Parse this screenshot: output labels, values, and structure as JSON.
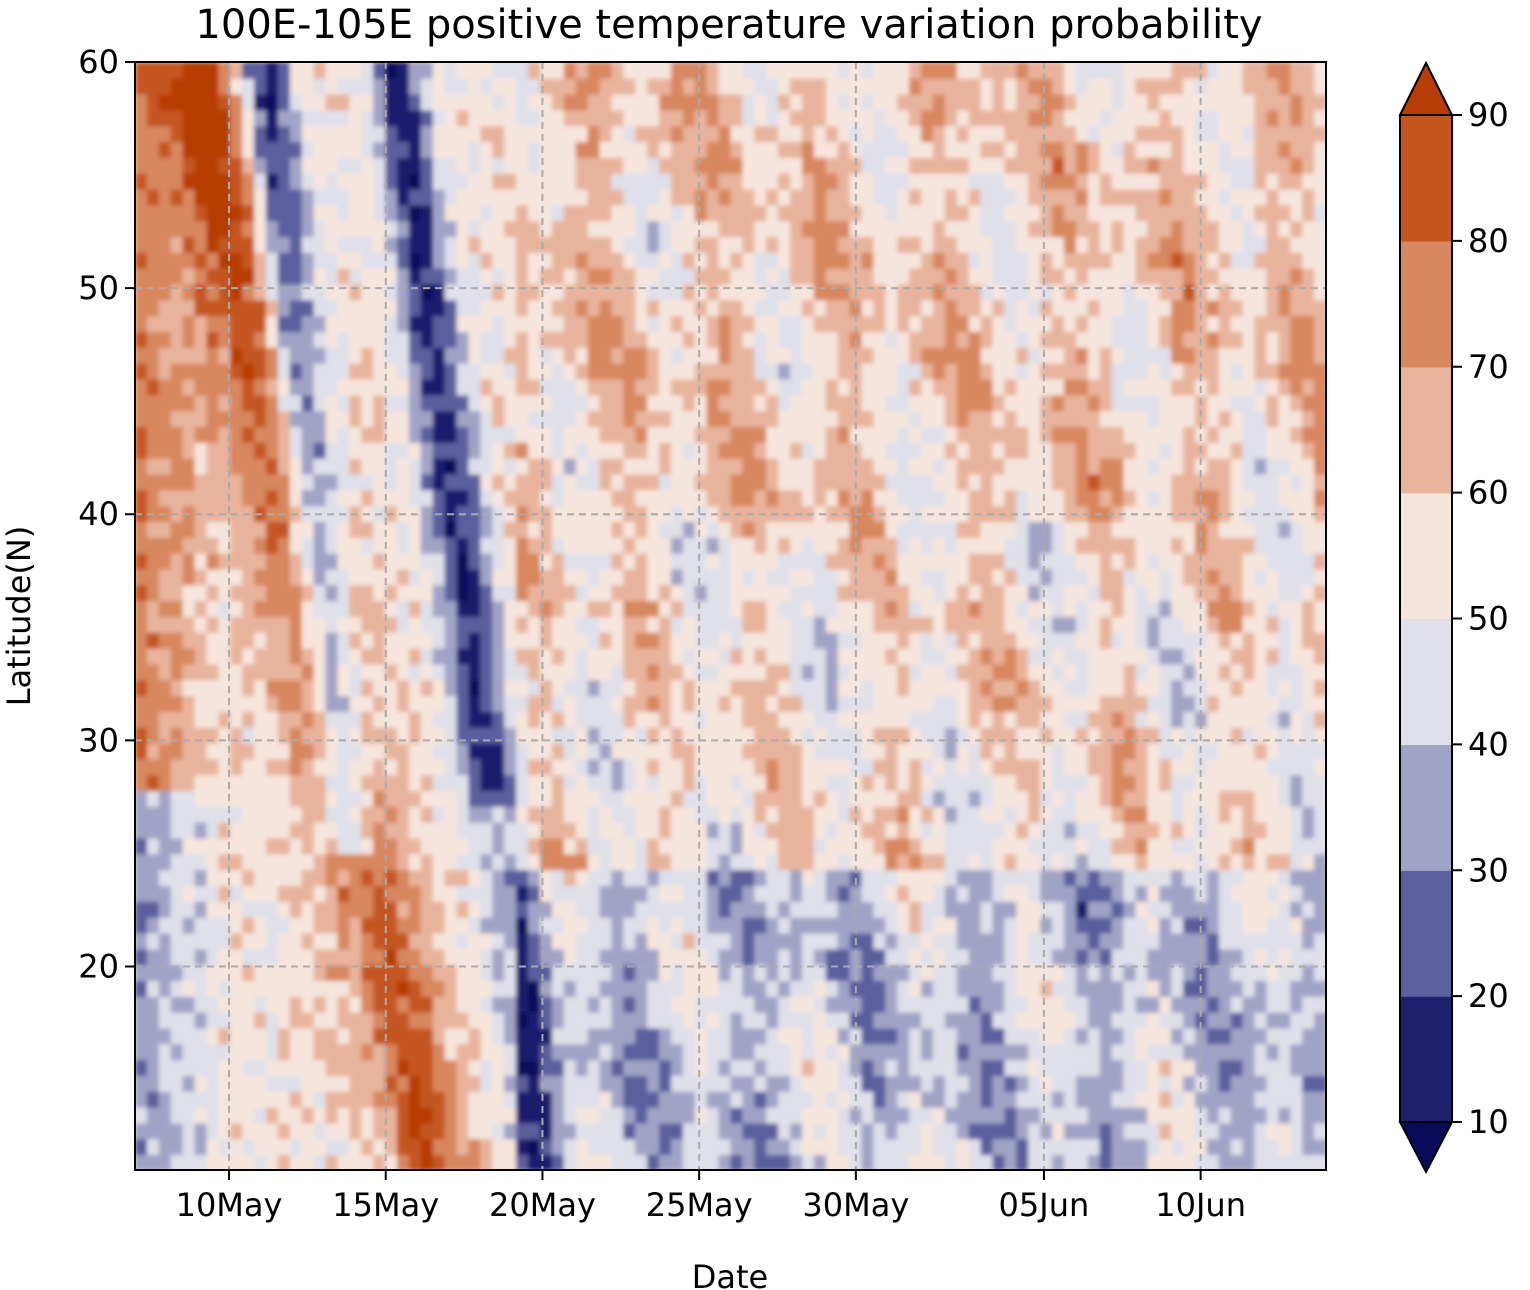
{
  "chart_data": {
    "type": "heatmap",
    "title": "100E-105E positive temperature variation probability",
    "xlabel": "Date",
    "ylabel": "Latitude(N)",
    "x_ticks": [
      "10May",
      "15May",
      "20May",
      "25May",
      "30May",
      "05Jun",
      "10Jun"
    ],
    "y_ticks": [
      "20",
      "30",
      "40",
      "50",
      "60"
    ],
    "ylim": [
      11,
      60
    ],
    "x_tick_positions_days_from_start": [
      3,
      8,
      13,
      18,
      23,
      29,
      34
    ],
    "x_range_days": [
      0,
      38
    ],
    "grid": true,
    "colorbar": {
      "levels": [
        10,
        20,
        30,
        40,
        50,
        60,
        70,
        80,
        90
      ],
      "tick_labels": [
        "10",
        "20",
        "30",
        "40",
        "50",
        "60",
        "70",
        "80",
        "90"
      ],
      "extend": "both",
      "colors": [
        "#0b0b5c",
        "#1e1f6e",
        "#5c5f9d",
        "#a1a3c6",
        "#dfe0ea",
        "#f6e5dd",
        "#e8b39c",
        "#d8875f",
        "#c55620",
        "#b83c05"
      ]
    },
    "features": [
      {
        "band": "high",
        "dates": "7May-17May",
        "latitude_range": [
          20,
          60
        ],
        "value_range": [
          80,
          90
        ]
      },
      {
        "band": "low",
        "dates": "7May-17May",
        "latitude_range": [
          25,
          60
        ],
        "value_range": [
          10,
          30
        ]
      },
      {
        "band": "mixed",
        "dates": "18May-13Jun",
        "latitude_range": [
          11,
          60
        ],
        "value_range": [
          30,
          80
        ]
      }
    ]
  }
}
